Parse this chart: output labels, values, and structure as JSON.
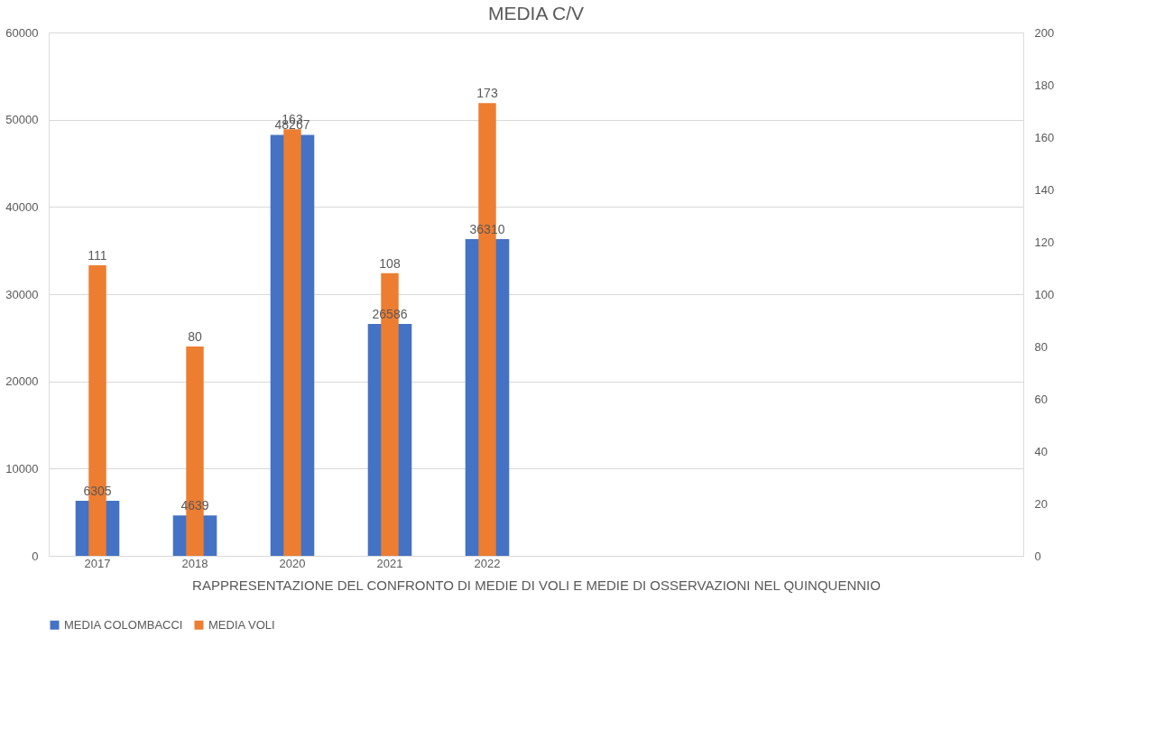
{
  "chart_data": {
    "type": "bar",
    "title": "MEDIA C/V",
    "xlabel": "RAPPRESENTAZIONE DEL CONFRONTO DI MEDIE DI VOLI E MEDIE DI OSSERVAZIONI NEL QUINQUENNIO",
    "categories": [
      "2017",
      "2018",
      "2020",
      "2021",
      "2022",
      null,
      null,
      null,
      null,
      null
    ],
    "series": [
      {
        "name": "MEDIA COLOMBACCI",
        "color": "#4472c4",
        "values": [
          6305,
          4639,
          48267,
          26586,
          36310,
          null,
          null,
          null,
          null,
          null
        ]
      },
      {
        "name": "MEDIA VOLI",
        "color": "#ed7d31",
        "axis": "y2",
        "values": [
          111,
          80,
          163,
          108,
          173,
          null,
          null,
          null,
          null,
          null
        ]
      }
    ],
    "ylim": [
      0,
      60000
    ],
    "yticks": [
      0,
      10000,
      20000,
      30000,
      40000,
      50000,
      60000
    ],
    "y2lim": [
      0,
      200
    ],
    "y2ticks": [
      0,
      20,
      40,
      60,
      80,
      100,
      120,
      140,
      160,
      180,
      200
    ],
    "data_labels": true,
    "grid": "y",
    "legend": "bottom"
  }
}
